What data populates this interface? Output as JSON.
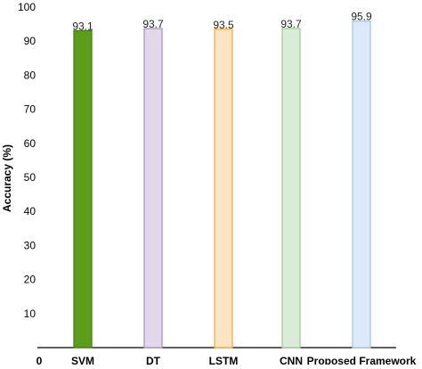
{
  "chart_data": {
    "type": "bar",
    "title": "",
    "xlabel": "",
    "ylabel": "Accuracy (%)",
    "ylim": [
      0,
      100
    ],
    "grid": false,
    "yticks_left": [
      {
        "value": 100,
        "label": "100"
      },
      {
        "value": 90,
        "label": "90"
      },
      {
        "value": 80,
        "label": "80"
      },
      {
        "value": 70,
        "label": "70"
      },
      {
        "value": 60,
        "label": "60"
      },
      {
        "value": 50,
        "label": "50"
      },
      {
        "value": 40,
        "label": "40"
      },
      {
        "value": 30,
        "label": "30"
      },
      {
        "value": 20,
        "label": "20"
      },
      {
        "value": 10,
        "label": "10"
      }
    ],
    "origin_label": "0",
    "categories": [
      "SVM",
      "DT",
      "LSTM",
      "CNN",
      "Proposed Framework"
    ],
    "values": [
      93.1,
      93.7,
      93.5,
      93.7,
      95.9
    ],
    "value_labels": [
      "93.1",
      "93.7",
      "93.5",
      "93.7",
      "95.9"
    ],
    "colors": [
      {
        "fill": "#5a9e1c",
        "stroke": "#3f7a0e"
      },
      {
        "fill": "#e3d7ec",
        "stroke": "#a58bc1"
      },
      {
        "fill": "#fde4c4",
        "stroke": "#f2a63a"
      },
      {
        "fill": "#d9ecd5",
        "stroke": "#9cc994"
      },
      {
        "fill": "#dce9fb",
        "stroke": "#a3c1ea"
      }
    ]
  }
}
